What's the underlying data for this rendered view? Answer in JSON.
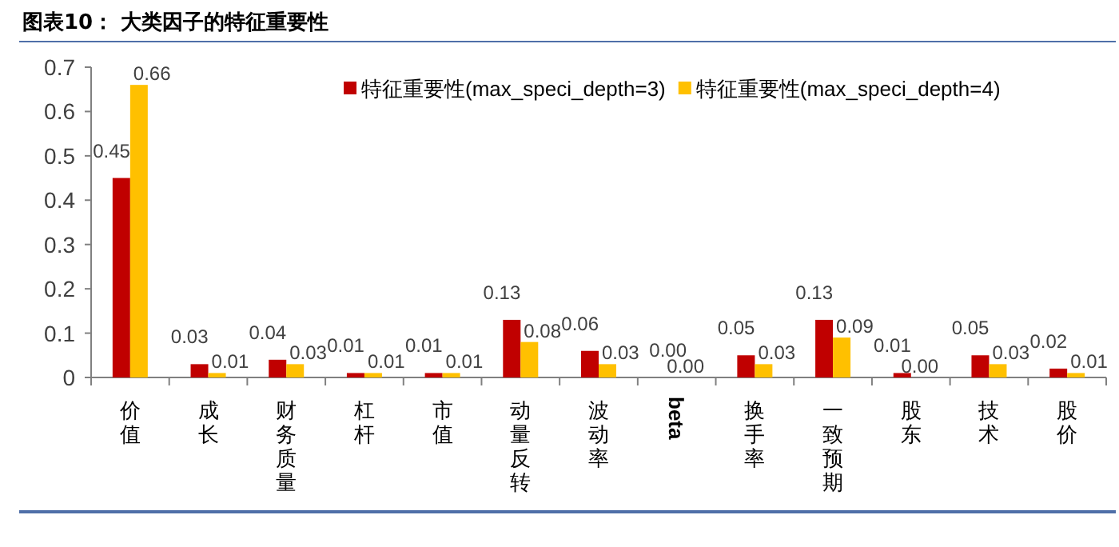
{
  "chart_data": {
    "type": "bar",
    "title": "图表10：  大类因子的特征重要性",
    "categories": [
      "价值",
      "成长",
      "财务质量",
      "杠杆",
      "市值",
      "动量反转",
      "波动率",
      "beta",
      "换手率",
      "一致预期",
      "股东",
      "技术",
      "股价"
    ],
    "series": [
      {
        "name": "特征重要性(max_speci_depth=3)",
        "color": "#c00000",
        "values": [
          0.45,
          0.03,
          0.04,
          0.01,
          0.01,
          0.13,
          0.06,
          0.0,
          0.05,
          0.13,
          0.01,
          0.05,
          0.02
        ],
        "value_labels": [
          "0.45",
          "0.03",
          "0.04",
          "0.01",
          "0.01",
          "0.13",
          "0.06",
          "0.00",
          "0.05",
          "0.13",
          "0.01",
          "0.05",
          "0.02"
        ]
      },
      {
        "name": "特征重要性(max_speci_depth=4)",
        "color": "#ffc000",
        "values": [
          0.66,
          0.01,
          0.03,
          0.01,
          0.01,
          0.08,
          0.03,
          0.0,
          0.03,
          0.09,
          0.0,
          0.03,
          0.01
        ],
        "value_labels": [
          "0.66",
          "0.01",
          "0.03",
          "0.01",
          "0.01",
          "0.08",
          "0.03",
          "0.00",
          "0.03",
          "0.09",
          "0.00",
          "0.03",
          "0.01"
        ]
      }
    ],
    "ylim": [
      0,
      0.7
    ],
    "yticks": [
      0,
      0.1,
      0.2,
      0.3,
      0.4,
      0.5,
      0.6,
      0.7
    ],
    "legend": "top right",
    "grid": false
  }
}
